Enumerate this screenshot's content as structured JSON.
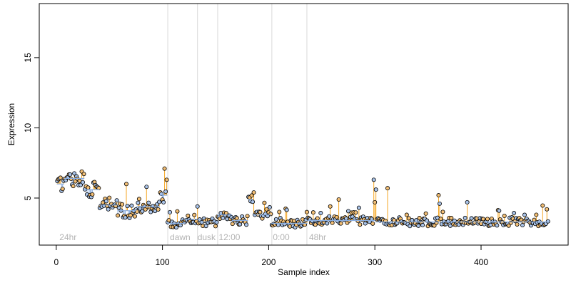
{
  "chart_data": {
    "type": "scatter",
    "title": "",
    "xlabel": "Sample index",
    "ylabel": "Expression",
    "xlim": [
      -16,
      482
    ],
    "ylim": [
      1.65,
      18.85
    ],
    "xticks": [
      0,
      100,
      200,
      300,
      400
    ],
    "yticks": [
      5,
      10,
      15
    ],
    "grid": false,
    "legend": "none",
    "baseline": 3.2,
    "colors": {
      "above_stem": "#F5A623",
      "below_stem": "#8AAEE0",
      "point_stroke": "#000000",
      "point_fill_a": "#F3BF75",
      "point_fill_b": "#A9C3E8",
      "separator": "#d9d9d9",
      "label": "#b3b3b3"
    },
    "group_separators": [
      105,
      133,
      152,
      203,
      236
    ],
    "group_labels": [
      {
        "text": "24hr",
        "x": 3
      },
      {
        "text": "dawn",
        "x": 107
      },
      {
        "text": "dusk",
        "x": 133
      },
      {
        "text": "12:00",
        "x": 153
      },
      {
        "text": "0:00",
        "x": 204
      },
      {
        "text": "48hr",
        "x": 238
      }
    ],
    "segments": [
      {
        "x0": 1,
        "x1": 7,
        "mean": 6.0
      },
      {
        "x0": 8,
        "x1": 26,
        "mean": 6.4
      },
      {
        "x0": 27,
        "x1": 40,
        "mean": 5.6
      },
      {
        "x0": 41,
        "x1": 57,
        "mean": 4.5
      },
      {
        "x0": 58,
        "x1": 75,
        "mean": 4.1
      },
      {
        "x0": 76,
        "x1": 97,
        "mean": 4.4
      },
      {
        "x0": 98,
        "x1": 104,
        "mean": 5.2
      },
      {
        "x0": 105,
        "x1": 120,
        "mean": 3.2
      },
      {
        "x0": 121,
        "x1": 133,
        "mean": 3.5
      },
      {
        "x0": 134,
        "x1": 151,
        "mean": 3.3
      },
      {
        "x0": 152,
        "x1": 165,
        "mean": 3.8
      },
      {
        "x0": 166,
        "x1": 180,
        "mean": 3.4
      },
      {
        "x0": 181,
        "x1": 185,
        "mean": 4.9
      },
      {
        "x0": 186,
        "x1": 202,
        "mean": 3.8
      },
      {
        "x0": 203,
        "x1": 236,
        "mean": 3.2
      },
      {
        "x0": 237,
        "x1": 300,
        "mean": 3.4
      },
      {
        "x0": 301,
        "x1": 463,
        "mean": 3.3
      }
    ],
    "spikes": [
      {
        "x": 66,
        "y": 6.0
      },
      {
        "x": 85,
        "y": 5.8
      },
      {
        "x": 102,
        "y": 7.1
      },
      {
        "x": 104,
        "y": 6.3
      },
      {
        "x": 133,
        "y": 4.4
      },
      {
        "x": 186,
        "y": 5.4
      },
      {
        "x": 198,
        "y": 4.2
      },
      {
        "x": 236,
        "y": 4.0
      },
      {
        "x": 258,
        "y": 4.4
      },
      {
        "x": 266,
        "y": 4.9
      },
      {
        "x": 299,
        "y": 6.3
      },
      {
        "x": 300,
        "y": 4.7
      },
      {
        "x": 301,
        "y": 5.6
      },
      {
        "x": 312,
        "y": 5.7
      },
      {
        "x": 360,
        "y": 5.2
      },
      {
        "x": 361,
        "y": 4.6
      },
      {
        "x": 387,
        "y": 4.7
      },
      {
        "x": 417,
        "y": 4.1
      },
      {
        "x": 462,
        "y": 4.2
      }
    ]
  }
}
